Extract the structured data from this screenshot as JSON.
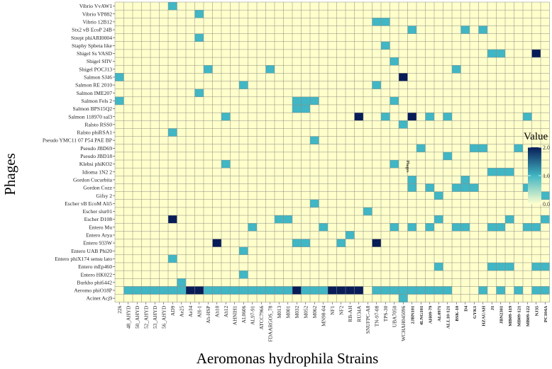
{
  "chart_data": {
    "type": "heatmap",
    "title": "",
    "xlabel": "Aeromonas hydrophila Strains",
    "ylabel": "Phages",
    "legend": {
      "title": "Value",
      "position": "right",
      "ticks": [
        "2.0",
        "1.0",
        "0.0"
      ],
      "range": [
        0,
        2
      ],
      "colors": [
        "#FFFFCC",
        "#41B6C4",
        "#081D58"
      ]
    },
    "annotation": "Phages",
    "x": [
      "226",
      "48_AHYD",
      "50_AHYD",
      "52_AHYD",
      "53_AHYD",
      "56_AHYD",
      "AD9",
      "Ae25",
      "Ae34",
      "AH-1",
      "Ah-HSP",
      "Ah10",
      "Ah12",
      "AHNIH1",
      "AL0606",
      "AL97-91",
      "ATCC7966",
      "FDAARGOS_78",
      "M013",
      "M001",
      "M032",
      "M052",
      "M062",
      "MN98-04",
      "NF1",
      "NF2",
      "RB-AH",
      "RU34A",
      "SNUFPC-A8",
      "TN-97-08",
      "TPS-30",
      "UBA7050",
      "WCHAH045096",
      "2JBN101",
      "4LNG101",
      "AH09-79",
      "AL0971",
      "ALL10-121",
      "BSK-10",
      "D4",
      "GYK1",
      "HZAUAH",
      "J1",
      "JBN2301",
      "MB09-119",
      "MB09-121",
      "MB09-122",
      "NJ35",
      "PC104A"
    ],
    "bold_from_index": 33,
    "y": [
      "Vibrio VvAW1",
      "Vibrio VP882",
      "Vibrio 12B12",
      "Stx2 vB EcoP 24B",
      "Strept phiARI0004",
      "Staphy Spbeta like",
      "Shigel Ss VASD",
      "Shigel SfIV",
      "Shigel POCJ13",
      "Salmon SJ46",
      "Salmon RE 2010",
      "Salmon IME207",
      "Salmon Fels 2",
      "Salmon BPS15Q2",
      "Salmon 118970 sal3",
      "Ralsto RSS0",
      "Ralsto phiRSA1",
      "Pseudo YMC11 07 P54 PAE BP",
      "Pseudo JBD69",
      "Pseudo JBD18",
      "Klebsi phiKO2",
      "Idioma 1N2 2",
      "Gordon Cucurbita",
      "Gordon Cozz",
      "Gifsy 2",
      "Escher vB EcoM Ali5",
      "Escher slur01",
      "Escher D108",
      "Entero Mu",
      "Entero Arya",
      "Entero 933W",
      "Entero UAB Phi20",
      "Entero phiX174 sensu lato",
      "Entero mEp460",
      "Entero HK022",
      "Burkho phi6442",
      "Aeromo phiO18P",
      "Acinet Acj9"
    ],
    "cells": [
      [
        "Vibrio VvAW1",
        "AD9",
        1
      ],
      [
        "Vibrio VP882",
        "AH-1",
        1
      ],
      [
        "Vibrio 12B12",
        "TN-97-08",
        1
      ],
      [
        "Vibrio 12B12",
        "TPS-30",
        1
      ],
      [
        "Stx2 vB EcoP 24B",
        "2JBN101",
        1
      ],
      [
        "Stx2 vB EcoP 24B",
        "D4",
        1
      ],
      [
        "Stx2 vB EcoP 24B",
        "HZAUAH",
        1
      ],
      [
        "Strept phiARI0004",
        "AH-1",
        1
      ],
      [
        "Staphy Spbeta like",
        "TPS-30",
        1
      ],
      [
        "Shigel Ss VASD",
        "J1",
        1
      ],
      [
        "Shigel Ss VASD",
        "JBN2301",
        1
      ],
      [
        "Shigel Ss VASD",
        "NJ35",
        2
      ],
      [
        "Shigel SfIV",
        "UBA7050",
        1
      ],
      [
        "Shigel POCJ13",
        "Ah-HSP",
        1
      ],
      [
        "Shigel POCJ13",
        "FDAARGOS_78",
        1
      ],
      [
        "Shigel POCJ13",
        "BSK-10",
        1
      ],
      [
        "Salmon SJ46",
        "226",
        1
      ],
      [
        "Salmon SJ46",
        "WCHAH045096",
        2
      ],
      [
        "Salmon RE 2010",
        "AL0606",
        1
      ],
      [
        "Salmon RE 2010",
        "TN-97-08",
        1
      ],
      [
        "Salmon IME207",
        "AH-1",
        1
      ],
      [
        "Salmon Fels 2",
        "226",
        1
      ],
      [
        "Salmon Fels 2",
        "M032",
        1
      ],
      [
        "Salmon Fels 2",
        "M052",
        1
      ],
      [
        "Salmon Fels 2",
        "M062",
        1
      ],
      [
        "Salmon Fels 2",
        "UBA7050",
        1
      ],
      [
        "Salmon BPS15Q2",
        "M032",
        1
      ],
      [
        "Salmon BPS15Q2",
        "M052",
        1
      ],
      [
        "Salmon 118970 sal3",
        "Ah12",
        1
      ],
      [
        "Salmon 118970 sal3",
        "RU34A",
        2
      ],
      [
        "Salmon 118970 sal3",
        "TPS-30",
        1
      ],
      [
        "Salmon 118970 sal3",
        "2JBN101",
        2
      ],
      [
        "Salmon 118970 sal3",
        "AH09-79",
        1
      ],
      [
        "Salmon 118970 sal3",
        "ALL10-121",
        1
      ],
      [
        "Salmon 118970 sal3",
        "MB09-122",
        1
      ],
      [
        "Ralsto RSS0",
        "WCHAH045096",
        1
      ],
      [
        "Ralsto phiRSA1",
        "AD9",
        1
      ],
      [
        "Pseudo YMC11 07 P54 PAE BP",
        "M062",
        1
      ],
      [
        "Pseudo JBD69",
        "4LNG101",
        1
      ],
      [
        "Pseudo JBD69",
        "GYK1",
        1
      ],
      [
        "Pseudo JBD69",
        "HZAUAH",
        1
      ],
      [
        "Pseudo JBD69",
        "MB09-121",
        1
      ],
      [
        "Pseudo JBD18",
        "ALL10-121",
        1
      ],
      [
        "Klebsi phiKO2",
        "Ah12",
        1
      ],
      [
        "Klebsi phiKO2",
        "UBA7050",
        1
      ],
      [
        "Idioma 1N2 2",
        "J1",
        1
      ],
      [
        "Idioma 1N2 2",
        "JBN2301",
        1
      ],
      [
        "Idioma 1N2 2",
        "MB09-119",
        1
      ],
      [
        "Idioma 1N2 2",
        "NJ35",
        1
      ],
      [
        "Gordon Cucurbita",
        "2JBN101",
        1
      ],
      [
        "Gordon Cucurbita",
        "D4",
        1
      ],
      [
        "Gordon Cozz",
        "2JBN101",
        1
      ],
      [
        "Gordon Cozz",
        "AH09-79",
        1
      ],
      [
        "Gordon Cozz",
        "BSK-10",
        1
      ],
      [
        "Gordon Cozz",
        "D4",
        1
      ],
      [
        "Gordon Cozz",
        "GYK1",
        1
      ],
      [
        "Gordon Cozz",
        "MB09-122",
        1
      ],
      [
        "Gifsy 2",
        "AL0971",
        1
      ],
      [
        "Gifsy 2",
        "PC104A",
        1
      ],
      [
        "Escher vB EcoM Ali5",
        "M062",
        1
      ],
      [
        "Escher slur01",
        "SNUFPC-A8",
        1
      ],
      [
        "Escher D108",
        "AD9",
        2
      ],
      [
        "Escher D108",
        "M013",
        1
      ],
      [
        "Escher D108",
        "M001",
        1
      ],
      [
        "Escher D108",
        "AL0971",
        1
      ],
      [
        "Escher D108",
        "MB09-119",
        1
      ],
      [
        "Escher D108",
        "PC104A",
        1
      ],
      [
        "Entero Mu",
        "AL97-91",
        1
      ],
      [
        "Entero Mu",
        "MN98-04",
        1
      ],
      [
        "Entero Mu",
        "UBA7050",
        1
      ],
      [
        "Entero Mu",
        "2JBN101",
        1
      ],
      [
        "Entero Mu",
        "AH09-79",
        1
      ],
      [
        "Entero Mu",
        "BSK-10",
        1
      ],
      [
        "Entero Mu",
        "D4",
        1
      ],
      [
        "Entero Mu",
        "J1",
        1
      ],
      [
        "Entero Mu",
        "JBN2301",
        1
      ],
      [
        "Entero Mu",
        "MB09-122",
        1
      ],
      [
        "Entero Mu",
        "NJ35",
        1
      ],
      [
        "Entero Arya",
        "RB-AH",
        1
      ],
      [
        "Entero 933W",
        "Ah10",
        2
      ],
      [
        "Entero 933W",
        "M032",
        1
      ],
      [
        "Entero 933W",
        "M052",
        1
      ],
      [
        "Entero 933W",
        "NF2",
        1
      ],
      [
        "Entero 933W",
        "TN-97-08",
        2
      ],
      [
        "Entero UAB Phi20",
        "AL0606",
        1
      ],
      [
        "Entero phiX174 sensu lato",
        "AD9",
        1
      ],
      [
        "Entero mEp460",
        "AL0971",
        1
      ],
      [
        "Entero mEp460",
        "J1",
        1
      ],
      [
        "Entero mEp460",
        "JBN2301",
        1
      ],
      [
        "Entero mEp460",
        "MB09-119",
        1
      ],
      [
        "Entero mEp460",
        "NJ35",
        1
      ],
      [
        "Entero mEp460",
        "PC104A",
        1
      ],
      [
        "Entero HK022",
        "AL0606",
        1
      ],
      [
        "Burkho phi6442",
        "Ae25",
        1
      ],
      [
        "Aeromo phiO18P",
        "48_AHYD",
        1
      ],
      [
        "Aeromo phiO18P",
        "50_AHYD",
        1
      ],
      [
        "Aeromo phiO18P",
        "52_AHYD",
        1
      ],
      [
        "Aeromo phiO18P",
        "53_AHYD",
        1
      ],
      [
        "Aeromo phiO18P",
        "56_AHYD",
        1
      ],
      [
        "Aeromo phiO18P",
        "AD9",
        1
      ],
      [
        "Aeromo phiO18P",
        "Ae25",
        1
      ],
      [
        "Aeromo phiO18P",
        "Ae34",
        2
      ],
      [
        "Aeromo phiO18P",
        "AH-1",
        2
      ],
      [
        "Aeromo phiO18P",
        "Ah-HSP",
        1
      ],
      [
        "Aeromo phiO18P",
        "Ah10",
        1
      ],
      [
        "Aeromo phiO18P",
        "Ah12",
        1
      ],
      [
        "Aeromo phiO18P",
        "AHNIH1",
        1
      ],
      [
        "Aeromo phiO18P",
        "AL0606",
        1
      ],
      [
        "Aeromo phiO18P",
        "AL97-91",
        1
      ],
      [
        "Aeromo phiO18P",
        "ATCC7966",
        1
      ],
      [
        "Aeromo phiO18P",
        "FDAARGOS_78",
        1
      ],
      [
        "Aeromo phiO18P",
        "M013",
        1
      ],
      [
        "Aeromo phiO18P",
        "M001",
        1
      ],
      [
        "Aeromo phiO18P",
        "M032",
        2
      ],
      [
        "Aeromo phiO18P",
        "M052",
        1
      ],
      [
        "Aeromo phiO18P",
        "M062",
        1
      ],
      [
        "Aeromo phiO18P",
        "MN98-04",
        1
      ],
      [
        "Aeromo phiO18P",
        "NF1",
        2
      ],
      [
        "Aeromo phiO18P",
        "NF2",
        2
      ],
      [
        "Aeromo phiO18P",
        "RB-AH",
        2
      ],
      [
        "Aeromo phiO18P",
        "RU34A",
        2
      ],
      [
        "Aeromo phiO18P",
        "TN-97-08",
        1
      ],
      [
        "Aeromo phiO18P",
        "TPS-30",
        1
      ],
      [
        "Aeromo phiO18P",
        "UBA7050",
        1
      ],
      [
        "Aeromo phiO18P",
        "WCHAH045096",
        1
      ],
      [
        "Aeromo phiO18P",
        "2JBN101",
        1
      ],
      [
        "Aeromo phiO18P",
        "4LNG101",
        1
      ],
      [
        "Aeromo phiO18P",
        "AH09-79",
        1
      ],
      [
        "Aeromo phiO18P",
        "AL0971",
        1
      ],
      [
        "Aeromo phiO18P",
        "ALL10-121",
        1
      ],
      [
        "Aeromo phiO18P",
        "HZAUAH",
        1
      ],
      [
        "Aeromo phiO18P",
        "JBN2301",
        1
      ],
      [
        "Aeromo phiO18P",
        "MB09-121",
        1
      ],
      [
        "Aeromo phiO18P",
        "NJ35",
        1
      ],
      [
        "Aeromo phiO18P",
        "PC104A",
        1
      ],
      [
        "Acinet Acj9",
        "WCHAH045096",
        1
      ]
    ]
  }
}
